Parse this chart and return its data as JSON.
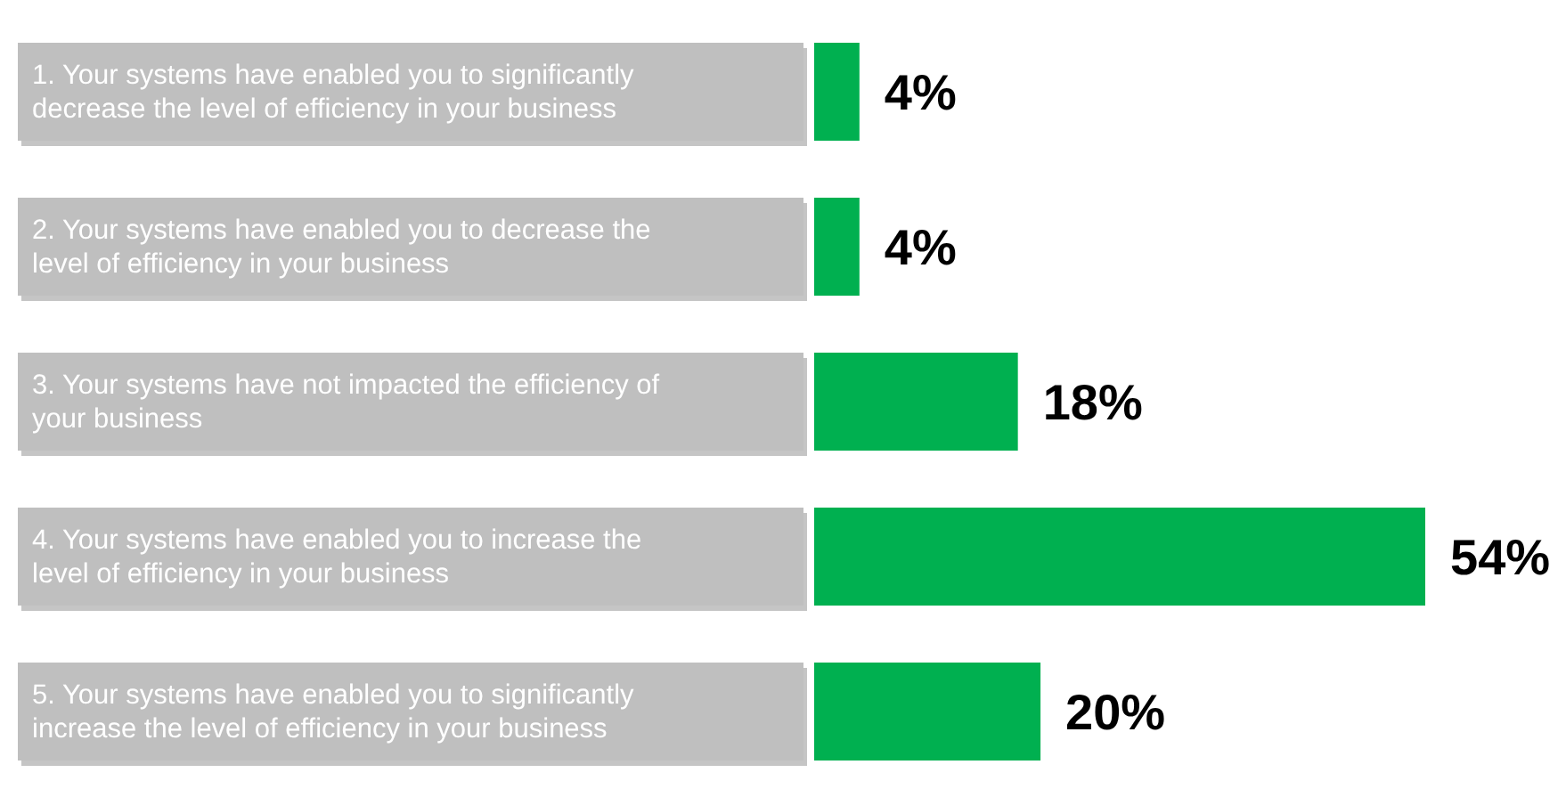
{
  "chart_data": {
    "type": "bar",
    "orientation": "horizontal",
    "categories": [
      "1. Your systems have enabled you to significantly decrease the level of efficiency in your business",
      "2. Your systems have enabled you to decrease the level of efficiency in your business",
      "3. Your systems have not impacted the efficiency of your business",
      "4. Your systems have enabled you to increase the level of efficiency in your business",
      "5. Your systems have enabled you to significantly increase the level of efficiency in your business"
    ],
    "values": [
      4,
      4,
      18,
      54,
      20
    ],
    "value_labels": [
      "4%",
      "4%",
      "18%",
      "54%",
      "20%"
    ],
    "color": "#00b050"
  }
}
